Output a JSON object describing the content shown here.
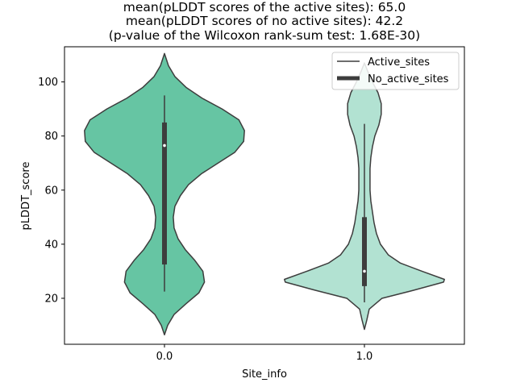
{
  "chart_data": {
    "type": "violin",
    "title_lines": [
      "mean(pLDDT scores of the active sites): 65.0",
      "mean(pLDDT scores of no active sites): 42.2",
      "(p-value of the Wilcoxon rank-sum test: 1.68E-30)"
    ],
    "xlabel": "Site_info",
    "ylabel": "pLDDT_score",
    "categories": [
      "0.0",
      "1.0"
    ],
    "ylim": [
      3,
      113
    ],
    "yticks": [
      20,
      40,
      60,
      80,
      100
    ],
    "legend": {
      "placement": "top-right",
      "entries": [
        {
          "label": "Active_sites",
          "style": "thin-line"
        },
        {
          "label": "No_active_sites",
          "style": "thick-line"
        }
      ]
    },
    "series": [
      {
        "category": "0.0",
        "color": "#66c5a3",
        "stats": {
          "whisker_low": 22.5,
          "q1": 32.5,
          "median": 76.5,
          "q3": 85,
          "whisker_high": 95
        },
        "density_range": [
          6.5,
          110.5
        ],
        "density_profile": [
          [
            6.5,
            0.0
          ],
          [
            10,
            0.04
          ],
          [
            14,
            0.12
          ],
          [
            18,
            0.27
          ],
          [
            22,
            0.43
          ],
          [
            26,
            0.5
          ],
          [
            30,
            0.48
          ],
          [
            34,
            0.38
          ],
          [
            38,
            0.26
          ],
          [
            42,
            0.17
          ],
          [
            46,
            0.12
          ],
          [
            50,
            0.11
          ],
          [
            54,
            0.13
          ],
          [
            58,
            0.2
          ],
          [
            62,
            0.3
          ],
          [
            66,
            0.46
          ],
          [
            70,
            0.67
          ],
          [
            74,
            0.88
          ],
          [
            78,
            0.99
          ],
          [
            82,
            1.0
          ],
          [
            86,
            0.93
          ],
          [
            90,
            0.72
          ],
          [
            94,
            0.47
          ],
          [
            98,
            0.27
          ],
          [
            102,
            0.13
          ],
          [
            106,
            0.05
          ],
          [
            110.5,
            0.0
          ]
        ]
      },
      {
        "category": "1.0",
        "color": "#b2e2d2",
        "stats": {
          "whisker_low": 18.5,
          "q1": 24.5,
          "median": 30,
          "q3": 50,
          "whisker_high": 84.5
        },
        "density_range": [
          8.5,
          107
        ],
        "density_profile": [
          [
            8.5,
            0.0
          ],
          [
            12,
            0.03
          ],
          [
            16,
            0.06
          ],
          [
            20,
            0.22
          ],
          [
            23,
            0.62
          ],
          [
            26,
            0.99
          ],
          [
            27,
            1.0
          ],
          [
            30,
            0.72
          ],
          [
            33,
            0.45
          ],
          [
            36,
            0.3
          ],
          [
            40,
            0.2
          ],
          [
            44,
            0.15
          ],
          [
            48,
            0.12
          ],
          [
            52,
            0.1
          ],
          [
            56,
            0.08
          ],
          [
            60,
            0.07
          ],
          [
            64,
            0.07
          ],
          [
            68,
            0.07
          ],
          [
            72,
            0.08
          ],
          [
            76,
            0.1
          ],
          [
            80,
            0.13
          ],
          [
            84,
            0.18
          ],
          [
            88,
            0.21
          ],
          [
            92,
            0.21
          ],
          [
            96,
            0.17
          ],
          [
            100,
            0.1
          ],
          [
            104,
            0.04
          ],
          [
            107,
            0.0
          ]
        ]
      }
    ]
  }
}
